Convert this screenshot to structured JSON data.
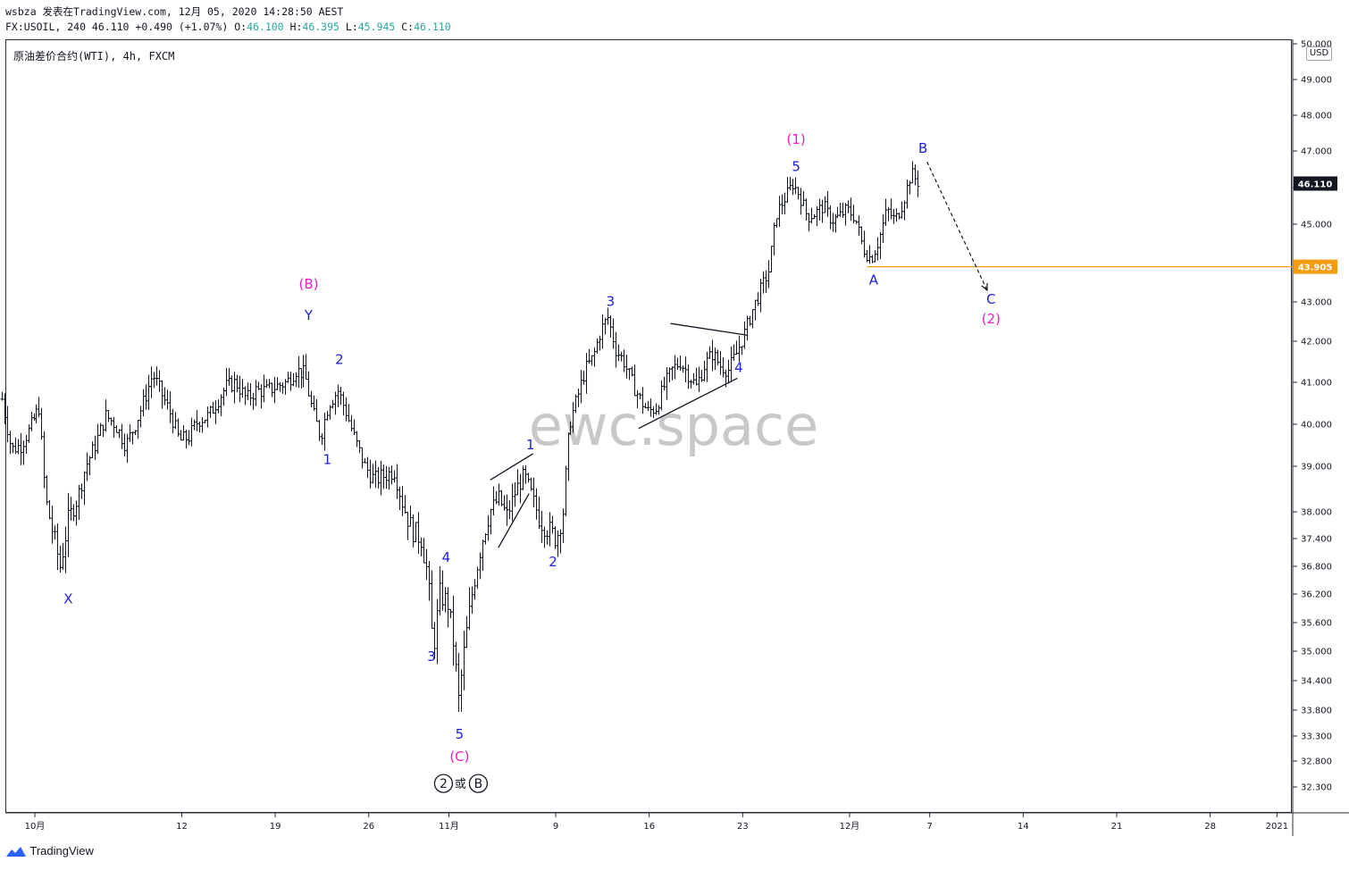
{
  "header": {
    "line1": "wsbza 发表在TradingView.com, 12月 05, 2020 14:28:50 AEST",
    "symbol": "FX:USOIL, 240 46.110 ",
    "change": "+0.490 (+1.07%)",
    "o_label": "O:",
    "o_value": "46.100",
    "h_label": "H:",
    "h_value": "46.395",
    "l_label": "L:",
    "l_value": "45.945",
    "c_label": "C:",
    "c_value": "46.110"
  },
  "symbol_label": "原油差价合约(WTI), 4h, FXCM",
  "currency": "USD",
  "footer_brand": "TradingView",
  "watermark": "ewc.space",
  "colors": {
    "wave_blue": "#1c1fd8",
    "wave_magenta": "#e91ec8",
    "level_orange": "#f39c12",
    "current_price_bg": "#131722",
    "candles": "#131722"
  },
  "chart_data": {
    "type": "candlestick",
    "timeframe": "4h",
    "y_ticks": [
      50.0,
      49.0,
      48.0,
      47.0,
      46.0,
      45.0,
      43.0,
      42.0,
      41.0,
      40.0,
      39.0,
      38.0,
      37.4,
      36.8,
      36.2,
      35.6,
      35.0,
      34.4,
      33.8,
      33.3,
      32.8,
      32.3
    ],
    "y_tick_labels": [
      "50.000",
      "49.000",
      "48.000",
      "47.000",
      "46.000",
      "45.000",
      "43.000",
      "42.000",
      "41.000",
      "40.000",
      "39.000",
      "38.000",
      "37.400",
      "36.800",
      "36.200",
      "35.600",
      "35.000",
      "34.400",
      "33.800",
      "33.300",
      "32.800",
      "32.300"
    ],
    "ylim": [
      32.0,
      50.2
    ],
    "x_ticks": [
      {
        "label": "10月",
        "day": 0
      },
      {
        "label": "12",
        "day": 11
      },
      {
        "label": "19",
        "day": 18
      },
      {
        "label": "26",
        "day": 25
      },
      {
        "label": "11月",
        "day": 31
      },
      {
        "label": "9",
        "day": 39
      },
      {
        "label": "16",
        "day": 46
      },
      {
        "label": "23",
        "day": 53
      },
      {
        "label": "12月",
        "day": 61
      },
      {
        "label": "7",
        "day": 67
      },
      {
        "label": "14",
        "day": 74
      },
      {
        "label": "21",
        "day": 81
      },
      {
        "label": "28",
        "day": 88
      },
      {
        "label": "2021",
        "day": 93
      }
    ],
    "last_price": 46.11,
    "last_price_label": "46.110",
    "horizontal_level": 43.905,
    "horizontal_level_label": "43.905",
    "price_path": [
      [
        -2.5,
        40.6
      ],
      [
        -1.8,
        39.4
      ],
      [
        -1.1,
        39.5
      ],
      [
        -0.4,
        39.9
      ],
      [
        0.3,
        40.4
      ],
      [
        0.8,
        38.3
      ],
      [
        1.3,
        37.6
      ],
      [
        1.9,
        36.8
      ],
      [
        2.5,
        37.8
      ],
      [
        3.2,
        38.3
      ],
      [
        3.8,
        39.0
      ],
      [
        4.5,
        39.5
      ],
      [
        5.3,
        40.2
      ],
      [
        6.0,
        40.0
      ],
      [
        6.8,
        39.5
      ],
      [
        7.5,
        40.0
      ],
      [
        8.2,
        40.6
      ],
      [
        8.8,
        41.2
      ],
      [
        9.5,
        40.7
      ],
      [
        10.2,
        40.2
      ],
      [
        10.8,
        39.6
      ],
      [
        11.5,
        39.7
      ],
      [
        12.2,
        40.1
      ],
      [
        13.0,
        40.2
      ],
      [
        13.7,
        40.6
      ],
      [
        14.3,
        40.9
      ],
      [
        15.0,
        41.0
      ],
      [
        15.8,
        40.6
      ],
      [
        16.5,
        40.8
      ],
      [
        17.3,
        40.8
      ],
      [
        18.0,
        40.9
      ],
      [
        18.8,
        41.0
      ],
      [
        19.5,
        41.3
      ],
      [
        20.2,
        41.2
      ],
      [
        20.8,
        40.3
      ],
      [
        21.4,
        39.7
      ],
      [
        22.0,
        40.5
      ],
      [
        22.7,
        40.8
      ],
      [
        23.3,
        40.3
      ],
      [
        24.0,
        39.6
      ],
      [
        24.7,
        39.0
      ],
      [
        25.4,
        38.7
      ],
      [
        26.2,
        38.8
      ],
      [
        26.9,
        38.9
      ],
      [
        27.5,
        38.2
      ],
      [
        28.2,
        37.6
      ],
      [
        28.9,
        37.4
      ],
      [
        29.4,
        36.6
      ],
      [
        29.8,
        35.0
      ],
      [
        30.3,
        36.2
      ],
      [
        30.9,
        36.0
      ],
      [
        31.3,
        35.2
      ],
      [
        31.7,
        34.0
      ],
      [
        32.2,
        35.2
      ],
      [
        32.8,
        36.4
      ],
      [
        33.4,
        37.3
      ],
      [
        34.0,
        38.0
      ],
      [
        34.7,
        38.3
      ],
      [
        35.3,
        37.9
      ],
      [
        36.0,
        38.5
      ],
      [
        36.6,
        38.8
      ],
      [
        37.2,
        38.3
      ],
      [
        37.8,
        37.8
      ],
      [
        38.4,
        37.6
      ],
      [
        39.0,
        37.4
      ],
      [
        39.5,
        38.0
      ],
      [
        40.0,
        40.0
      ],
      [
        40.6,
        40.6
      ],
      [
        41.2,
        41.3
      ],
      [
        41.8,
        41.6
      ],
      [
        42.4,
        42.3
      ],
      [
        42.9,
        42.6
      ],
      [
        43.5,
        41.8
      ],
      [
        44.1,
        41.5
      ],
      [
        44.7,
        41.0
      ],
      [
        45.3,
        40.6
      ],
      [
        45.9,
        40.3
      ],
      [
        46.5,
        40.4
      ],
      [
        47.1,
        40.9
      ],
      [
        47.7,
        41.3
      ],
      [
        48.3,
        41.5
      ],
      [
        48.9,
        41.2
      ],
      [
        49.5,
        40.9
      ],
      [
        50.1,
        41.4
      ],
      [
        50.7,
        41.7
      ],
      [
        51.3,
        41.4
      ],
      [
        51.9,
        41.3
      ],
      [
        52.5,
        41.7
      ],
      [
        53.1,
        42.2
      ],
      [
        53.7,
        42.8
      ],
      [
        54.3,
        43.3
      ],
      [
        54.9,
        43.8
      ],
      [
        55.5,
        45.3
      ],
      [
        56.1,
        45.7
      ],
      [
        56.7,
        46.1
      ],
      [
        57.2,
        45.8
      ],
      [
        57.8,
        45.2
      ],
      [
        58.4,
        45.3
      ],
      [
        59.0,
        45.5
      ],
      [
        59.6,
        45.1
      ],
      [
        60.2,
        45.2
      ],
      [
        60.8,
        45.4
      ],
      [
        61.4,
        45.2
      ],
      [
        62.0,
        44.4
      ],
      [
        62.6,
        44.1
      ],
      [
        63.2,
        44.6
      ],
      [
        63.8,
        45.4
      ],
      [
        64.4,
        45.1
      ],
      [
        65.0,
        45.6
      ],
      [
        65.6,
        46.4
      ],
      [
        66.2,
        46.1
      ]
    ],
    "annotations": [
      {
        "text": "X",
        "day": 2.5,
        "price": 36.0,
        "color": "blue"
      },
      {
        "text": "(B)",
        "day": 20.5,
        "price": 43.35,
        "color": "magenta"
      },
      {
        "text": "Y",
        "day": 20.5,
        "price": 42.55,
        "color": "blue"
      },
      {
        "text": "1",
        "day": 21.9,
        "price": 39.05,
        "color": "blue"
      },
      {
        "text": "2",
        "day": 22.8,
        "price": 41.45,
        "color": "blue"
      },
      {
        "text": "3",
        "day": 29.7,
        "price": 34.8,
        "color": "blue"
      },
      {
        "text": "4",
        "day": 30.8,
        "price": 36.9,
        "color": "blue"
      },
      {
        "text": "5",
        "day": 31.8,
        "price": 33.25,
        "color": "blue"
      },
      {
        "text": "(C)",
        "day": 31.8,
        "price": 32.8,
        "color": "magenta"
      },
      {
        "text": "1",
        "day": 37.1,
        "price": 39.4,
        "color": "blue"
      },
      {
        "text": "2",
        "day": 38.8,
        "price": 36.8,
        "color": "blue"
      },
      {
        "text": "3",
        "day": 43.1,
        "price": 42.9,
        "color": "blue"
      },
      {
        "text": "4",
        "day": 52.7,
        "price": 41.25,
        "color": "blue"
      },
      {
        "text": "(1)",
        "day": 57.0,
        "price": 47.2,
        "color": "magenta"
      },
      {
        "text": "5",
        "day": 57.0,
        "price": 46.45,
        "color": "blue"
      },
      {
        "text": "A",
        "day": 62.8,
        "price": 43.45,
        "color": "blue"
      },
      {
        "text": "B",
        "day": 66.5,
        "price": 46.95,
        "color": "blue"
      },
      {
        "text": "C",
        "day": 71.6,
        "price": 42.95,
        "color": "blue"
      },
      {
        "text": "(2)",
        "day": 71.6,
        "price": 42.45,
        "color": "magenta"
      }
    ],
    "degree_label": {
      "circled_left": "2",
      "middle": "或",
      "circled_right": "B",
      "day": 31.8,
      "price": 32.28
    },
    "trendlines": [
      {
        "from": [
          34.1,
          38.7
        ],
        "to": [
          37.3,
          39.3
        ]
      },
      {
        "from": [
          34.7,
          37.2
        ],
        "to": [
          37.0,
          38.4
        ]
      },
      {
        "from": [
          47.6,
          42.45
        ],
        "to": [
          53.4,
          42.15
        ]
      },
      {
        "from": [
          45.2,
          39.9
        ],
        "to": [
          52.6,
          41.1
        ]
      }
    ],
    "projection": {
      "from": [
        66.8,
        46.7
      ],
      "to": [
        71.3,
        43.3
      ]
    }
  }
}
